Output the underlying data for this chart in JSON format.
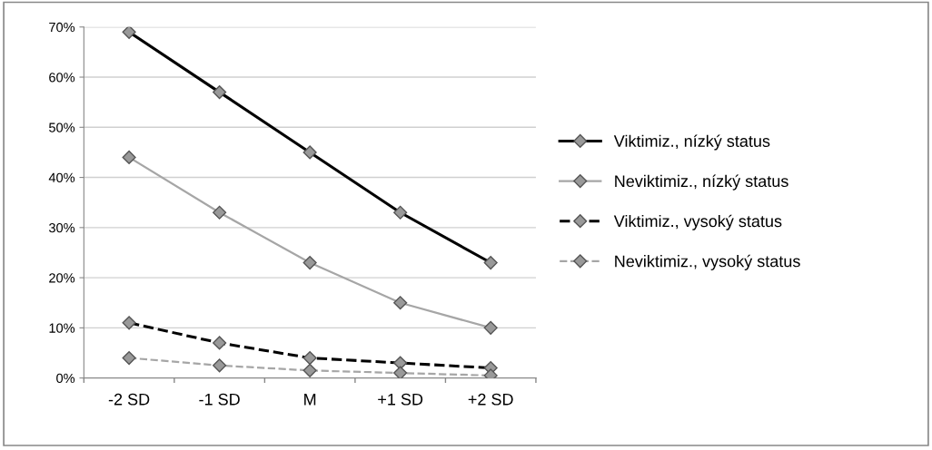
{
  "chart_data": {
    "type": "line",
    "categories": [
      "-2 SD",
      "-1 SD",
      "M",
      "+1 SD",
      "+2 SD"
    ],
    "series": [
      {
        "name": "Viktimiz., nízký status",
        "color": "#000000",
        "line_style": "solid",
        "values": [
          69,
          57,
          45,
          33,
          23
        ]
      },
      {
        "name": "Neviktimiz., nízký status",
        "color": "#a6a6a6",
        "line_style": "solid",
        "values": [
          44,
          33,
          23,
          15,
          10
        ]
      },
      {
        "name": "Viktimiz., vysoký status",
        "color": "#000000",
        "line_style": "dashed",
        "values": [
          11,
          7,
          4,
          3,
          2
        ]
      },
      {
        "name": "Neviktimiz., vysoký status",
        "color": "#a6a6a6",
        "line_style": "dashed",
        "values": [
          4,
          2.5,
          1.5,
          1,
          0.5
        ]
      }
    ],
    "ylim": [
      0,
      70
    ],
    "yticks": [
      {
        "value": 0,
        "label": "0%"
      },
      {
        "value": 10,
        "label": "10%"
      },
      {
        "value": 20,
        "label": "20%"
      },
      {
        "value": 30,
        "label": "30%"
      },
      {
        "value": 40,
        "label": "40%"
      },
      {
        "value": 50,
        "label": "50%"
      },
      {
        "value": 60,
        "label": "60%"
      },
      {
        "value": 70,
        "label": "70%"
      }
    ],
    "grid": "y",
    "legend": "right",
    "marker": "diamond"
  }
}
